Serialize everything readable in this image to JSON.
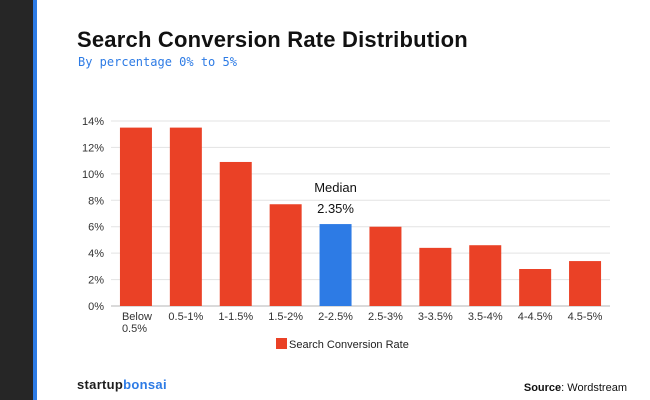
{
  "header": {
    "title": "Search Conversion Rate Distribution",
    "subtitle": "By percentage 0% to 5%"
  },
  "branding": {
    "name_part1": "startup",
    "name_part2": "bonsai"
  },
  "source": {
    "label": "Source",
    "value": "Wordstream"
  },
  "colors": {
    "series": "#ea4126",
    "highlight": "#2d7be5",
    "accent": "#2d7be5"
  },
  "chart_data": {
    "type": "bar",
    "title": "Search Conversion Rate Distribution",
    "subtitle": "By percentage 0% to 5%",
    "categories": [
      "Below 0.5%",
      "0.5-1%",
      "1-1.5%",
      "1.5-2%",
      "2-2.5%",
      "2.5-3%",
      "3-3.5%",
      "3.5-4%",
      "4-4.5%",
      "4.5-5%"
    ],
    "category_lines": [
      [
        "Below",
        "0.5%"
      ],
      [
        "0.5-1%"
      ],
      [
        "1-1.5%"
      ],
      [
        "1.5-2%"
      ],
      [
        "2-2.5%"
      ],
      [
        "2.5-3%"
      ],
      [
        "3-3.5%"
      ],
      [
        "3.5-4%"
      ],
      [
        "4-4.5%"
      ],
      [
        "4.5-5%"
      ]
    ],
    "series": [
      {
        "name": "Search Conversion Rate",
        "values": [
          13.5,
          13.5,
          10.9,
          7.7,
          6.2,
          6.0,
          4.4,
          4.6,
          2.8,
          3.4
        ]
      }
    ],
    "highlight_index": 4,
    "annotation": {
      "category": "2-2.5%",
      "line1": "Median",
      "line2": "2.35%"
    },
    "y_ticks": [
      0,
      2,
      4,
      6,
      8,
      10,
      12,
      14
    ],
    "y_tick_labels": [
      "0%",
      "2%",
      "4%",
      "6%",
      "8%",
      "10%",
      "12%",
      "14%"
    ],
    "ylim": [
      0,
      14
    ],
    "xlabel": "",
    "ylabel": "",
    "grid": true,
    "legend_position": "bottom-center"
  }
}
